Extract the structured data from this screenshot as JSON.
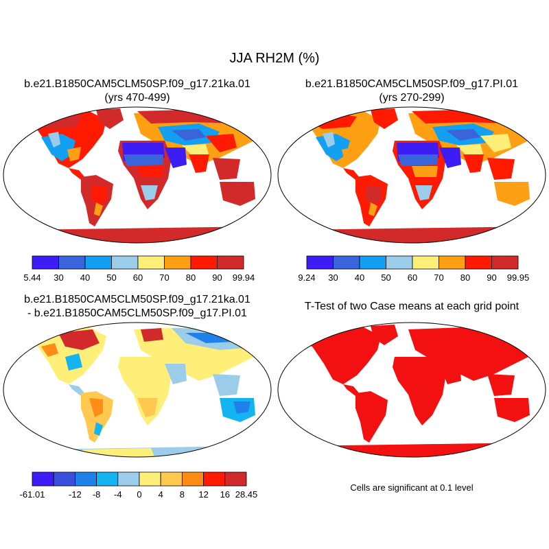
{
  "figure": {
    "title": "JJA RH2M (%)",
    "panels": [
      {
        "id": "case1",
        "title_line1": "b.e21.B1850CAM5CLM50SP.f09_g17.21ka.01",
        "title_line2": "(yrs 470-499)"
      },
      {
        "id": "case2",
        "title_line1": "b.e21.B1850CAM5CLM50SP.f09_g17.PI.01",
        "title_line2": "(yrs 270-299)"
      },
      {
        "id": "diff",
        "title_line1": "b.e21.B1850CAM5CLM50SP.f09_g17.21ka.01",
        "title_line2": "- b.e21.B1850CAM5CLM50SP.f09_g17.PI.01"
      },
      {
        "id": "ttest",
        "title_line1": "T-Test of two Case means at each grid point"
      }
    ],
    "note": "Cells are significant at 0.1 level"
  },
  "colorbars": {
    "case1": {
      "labels": [
        "5.44",
        "30",
        "40",
        "50",
        "60",
        "70",
        "80",
        "90",
        "99.94"
      ],
      "colors": [
        "#3c1ef5",
        "#3a64dc",
        "#14a0f0",
        "#9bcdeb",
        "#ffee78",
        "#ffa014",
        "#ff1a00",
        "#d22a2a"
      ]
    },
    "case2": {
      "labels": [
        "9.24",
        "30",
        "40",
        "50",
        "60",
        "70",
        "80",
        "90",
        "99.95"
      ],
      "colors": [
        "#3c1ef5",
        "#3a64dc",
        "#14a0f0",
        "#9bcdeb",
        "#ffee78",
        "#ffa014",
        "#ff1a00",
        "#d22a2a"
      ]
    },
    "diff": {
      "labels": [
        "-61.01",
        "",
        "-12",
        "-8",
        "-4",
        "0",
        "4",
        "8",
        "12",
        "16",
        "28.45"
      ],
      "colors": [
        "#3c1ef5",
        "#3a50dc",
        "#1e82ea",
        "#14b4f0",
        "#9bcdeb",
        "#ffee78",
        "#ffc850",
        "#ff8c14",
        "#ff1a00",
        "#d22a2a"
      ]
    }
  },
  "map_colors": {
    "ocean": "#ffffff",
    "ttest_significant": "#f21010"
  }
}
